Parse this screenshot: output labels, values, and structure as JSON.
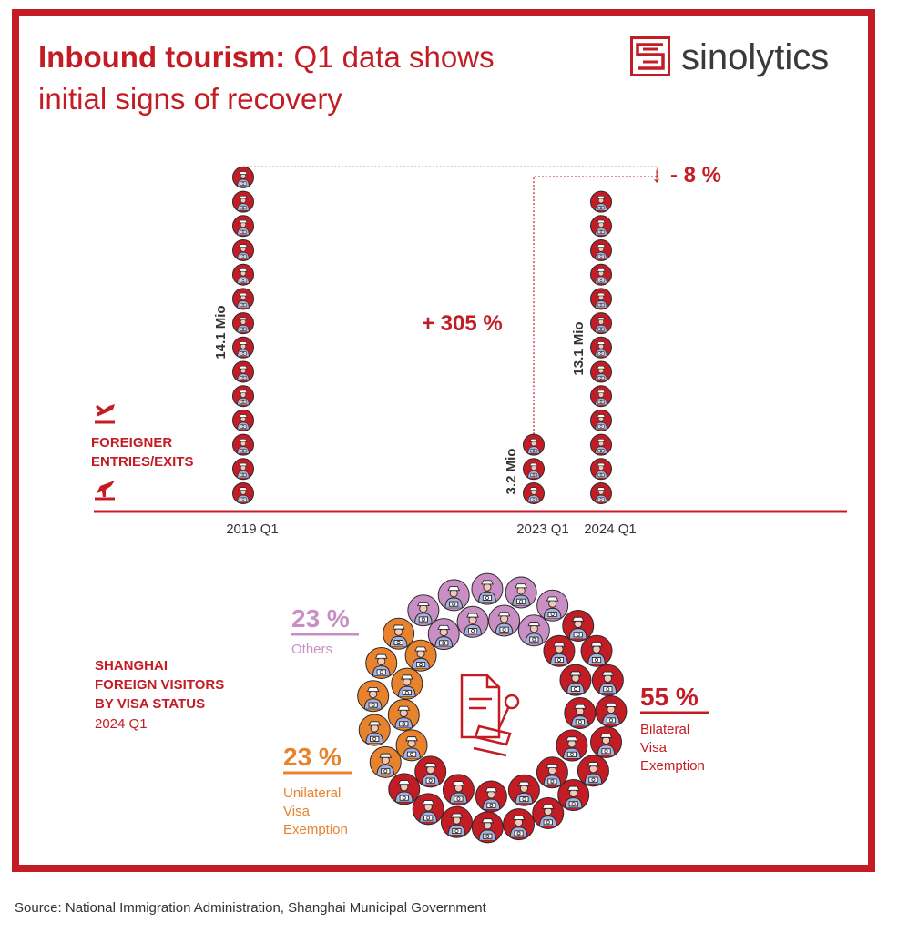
{
  "title": {
    "bold": "Inbound tourism:",
    "line1_rest": " Q1 data shows",
    "line2": "initial signs of recovery"
  },
  "logo": {
    "text": "sinolytics"
  },
  "colors": {
    "red": "#c41c24",
    "purple": "#c98fc4",
    "orange": "#e8822c",
    "dark": "#333333"
  },
  "bar_section": {
    "label_lines": [
      "FOREIGNER",
      "ENTRIES/EXITS"
    ],
    "icon_top": "plane-landing-icon",
    "icon_bottom": "plane-takeoff-icon",
    "change_1": "+ 305 %",
    "change_2": "- 8 %",
    "change_2_arrow": "↓"
  },
  "donut_section": {
    "label_lines": [
      "SHANGHAI",
      "FOREIGN VISITORS",
      "BY VISA STATUS"
    ],
    "period": "2024 Q1",
    "center_icon": "stamped-document-icon",
    "segments": [
      {
        "pct": "23 %",
        "name_lines": [
          "Others"
        ]
      },
      {
        "pct": "55 %",
        "name_lines": [
          "Bilateral",
          "Visa",
          "Exemption"
        ]
      },
      {
        "pct": "23 %",
        "name_lines": [
          "Unilateral",
          "Visa",
          "Exemption"
        ]
      }
    ]
  },
  "chart_data": [
    {
      "type": "bar",
      "categories": [
        "2019 Q1",
        "2023 Q1",
        "2024 Q1"
      ],
      "values": [
        14.1,
        3.2,
        13.1
      ],
      "value_labels": [
        "14.1 Mio",
        "3.2 Mio",
        "13.1 Mio"
      ],
      "unit": "Mio",
      "series": [
        {
          "name": "FOREIGNER ENTRIES/EXITS",
          "values": [
            14.1,
            3.2,
            13.1
          ]
        }
      ],
      "annotations": [
        "+ 305 %",
        "- 8 %"
      ]
    },
    {
      "type": "pie",
      "title": "SHANGHAI FOREIGN VISITORS BY VISA STATUS 2024 Q1",
      "categories": [
        "Others",
        "Bilateral Visa Exemption",
        "Unilateral Visa Exemption"
      ],
      "values": [
        23,
        55,
        23
      ],
      "colors": [
        "#c98fc4",
        "#c41c24",
        "#e8822c"
      ]
    }
  ],
  "source": "Source: National Immigration Administration, Shanghai Municipal Government"
}
